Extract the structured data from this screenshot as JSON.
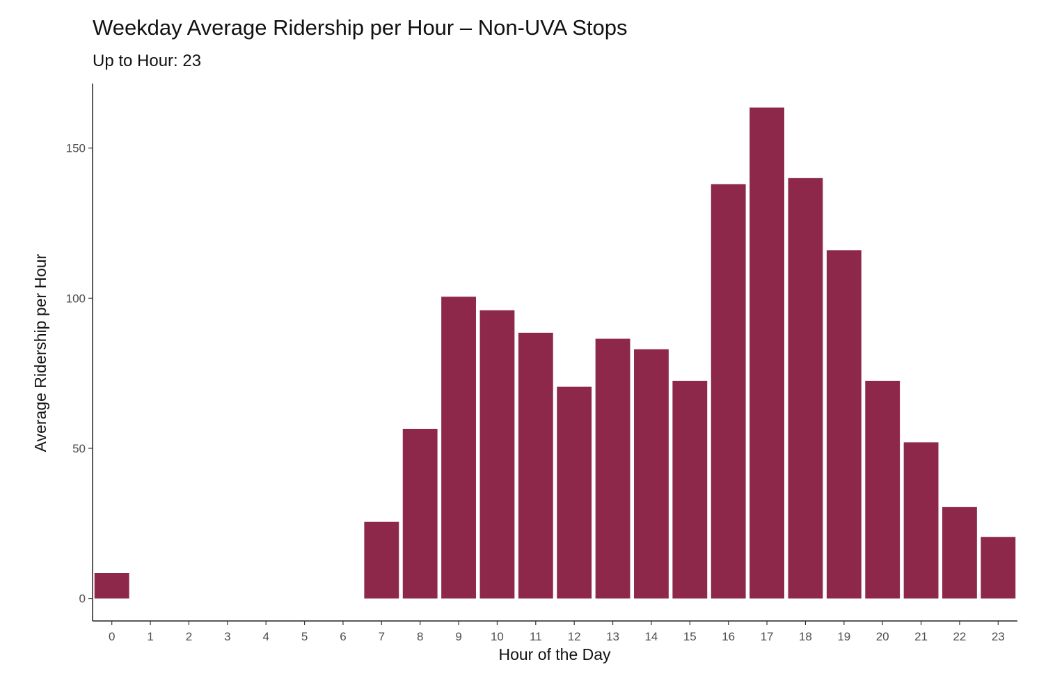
{
  "chart_data": {
    "type": "bar",
    "title": "Weekday Average Ridership per Hour – Non-UVA Stops",
    "subtitle": "Up to Hour: 23",
    "xlabel": "Hour of the Day",
    "ylabel": "Average Ridership per Hour",
    "categories": [
      "0",
      "1",
      "2",
      "3",
      "4",
      "5",
      "6",
      "7",
      "8",
      "9",
      "10",
      "11",
      "12",
      "13",
      "14",
      "15",
      "16",
      "17",
      "18",
      "19",
      "20",
      "21",
      "22",
      "23"
    ],
    "values": [
      8.5,
      0,
      0,
      0,
      0,
      0,
      0,
      25.5,
      56.5,
      100.5,
      96,
      88.5,
      70.5,
      86.5,
      83,
      72.5,
      138,
      163.5,
      140,
      116,
      72.5,
      52,
      30.5,
      20.5
    ],
    "yticks": [
      0,
      50,
      100,
      150
    ],
    "ylim": [
      -7.5,
      171.5
    ],
    "grid": false,
    "legend": "none",
    "bar_color": "#8e284b"
  }
}
